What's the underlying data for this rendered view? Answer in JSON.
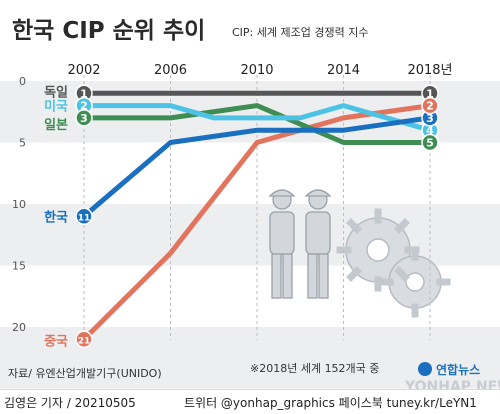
{
  "chart_data": {
    "type": "line",
    "title": "한국 CIP 순위 추이",
    "subtitle": "CIP: 세계 제조업 경쟁력 지수",
    "x": [
      2002,
      2004,
      2006,
      2008,
      2010,
      2012,
      2014,
      2016,
      2018
    ],
    "x_tick_labels": [
      "2002",
      "2006",
      "2010",
      "2014",
      "2018년"
    ],
    "x_tick_values": [
      2002,
      2006,
      2010,
      2014,
      2018
    ],
    "y_tick_values": [
      0,
      5,
      10,
      15,
      20
    ],
    "ylim": [
      0,
      22
    ],
    "y_inverted": true,
    "grid": "horizontal bands",
    "series": [
      {
        "name": "독일",
        "color": "#555555",
        "values": [
          1,
          1,
          1,
          1,
          1,
          1,
          1,
          1,
          1
        ],
        "start_badge": "1",
        "end_badge": "1"
      },
      {
        "name": "미국",
        "color": "#4cc3e4",
        "values": [
          2,
          2,
          2,
          3,
          3,
          3,
          2,
          3,
          4
        ],
        "start_badge": "2",
        "end_badge": "4"
      },
      {
        "name": "일본",
        "color": "#3f8d52",
        "values": [
          3,
          3,
          3,
          2.5,
          2,
          3.5,
          5,
          5,
          5
        ],
        "start_badge": "3",
        "end_badge": "5"
      },
      {
        "name": "한국",
        "color": "#1a6fc0",
        "values": [
          11,
          8,
          5,
          4.5,
          4,
          4,
          4,
          3.5,
          3
        ],
        "start_badge": "11",
        "end_badge": "3"
      },
      {
        "name": "중국",
        "color": "#e2745e",
        "values": [
          21,
          17.5,
          14,
          9.5,
          5,
          4,
          3,
          2.5,
          2
        ],
        "start_badge": "21",
        "end_badge": "2"
      }
    ]
  },
  "source": "자료/ 유엔산업개발기구(UNIDO)",
  "note": "※2018년 세계 152개국 중",
  "logo_text": "연합뉴스",
  "watermark": "YONHAP NEWS",
  "footer": {
    "byline": "김영은 기자 / 20210505",
    "social": "트위터 @yonhap_graphics  페이스북 tuney.kr/LeYN1"
  }
}
